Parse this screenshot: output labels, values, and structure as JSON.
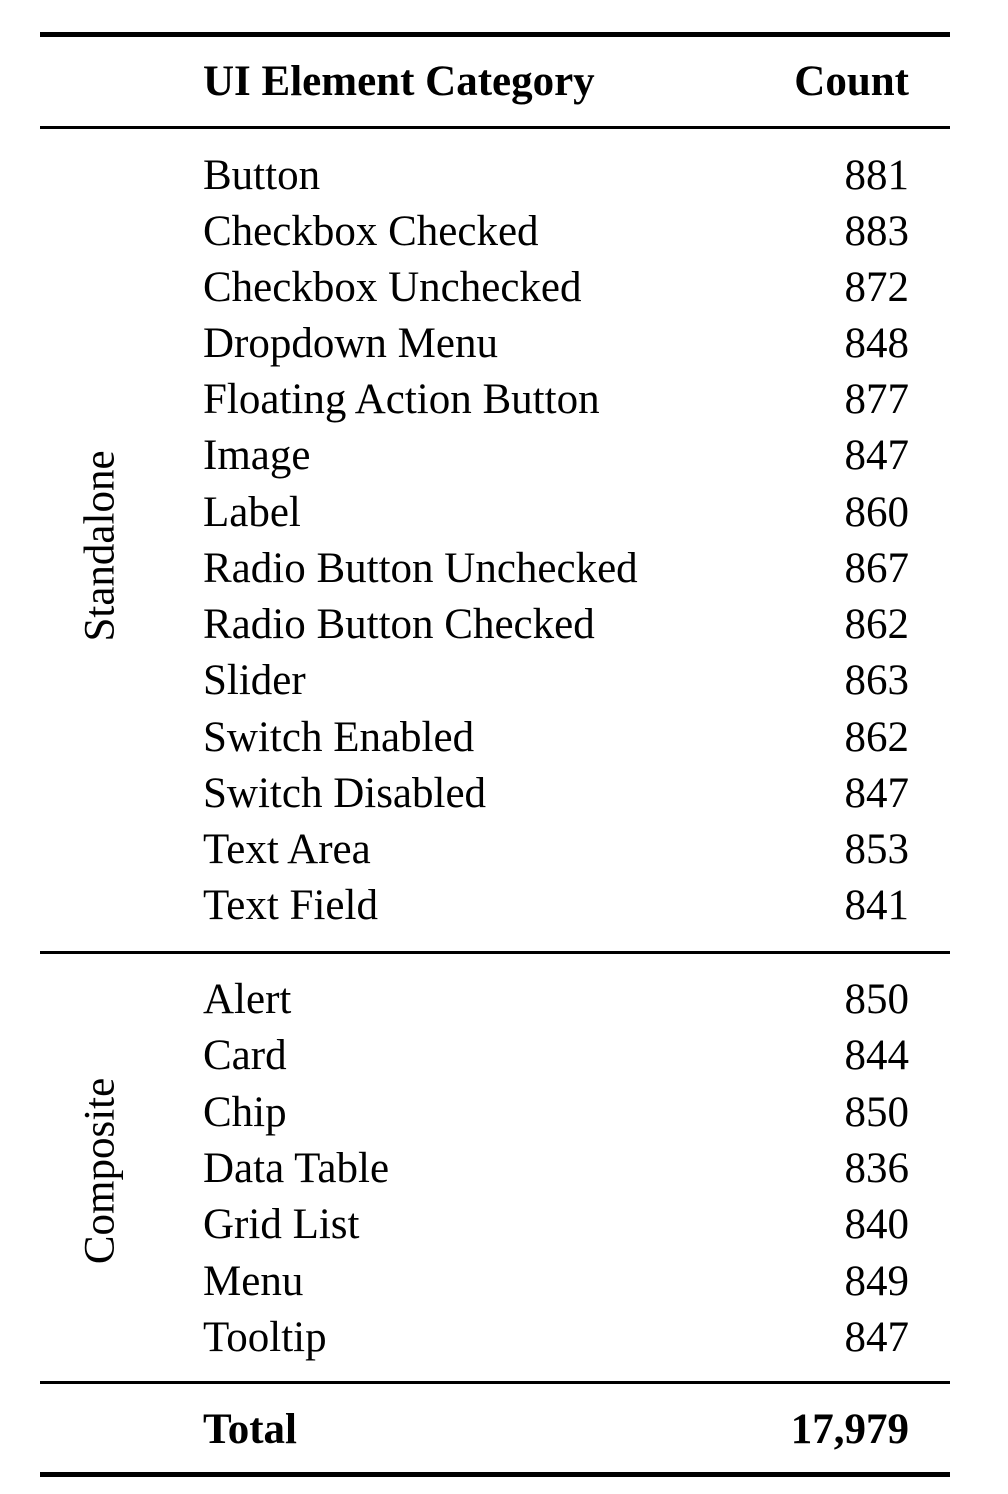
{
  "header": {
    "category": "UI Element Category",
    "count": "Count"
  },
  "groups": [
    {
      "label": "Standalone",
      "rows": [
        {
          "name": "Button",
          "count": "881"
        },
        {
          "name": "Checkbox Checked",
          "count": "883"
        },
        {
          "name": "Checkbox Unchecked",
          "count": "872"
        },
        {
          "name": "Dropdown Menu",
          "count": "848"
        },
        {
          "name": "Floating Action Button",
          "count": "877"
        },
        {
          "name": "Image",
          "count": "847"
        },
        {
          "name": "Label",
          "count": "860"
        },
        {
          "name": "Radio Button Unchecked",
          "count": "867"
        },
        {
          "name": "Radio Button Checked",
          "count": "862"
        },
        {
          "name": "Slider",
          "count": "863"
        },
        {
          "name": "Switch Enabled",
          "count": "862"
        },
        {
          "name": "Switch Disabled",
          "count": "847"
        },
        {
          "name": "Text Area",
          "count": "853"
        },
        {
          "name": "Text Field",
          "count": "841"
        }
      ]
    },
    {
      "label": "Composite",
      "rows": [
        {
          "name": "Alert",
          "count": "850"
        },
        {
          "name": "Card",
          "count": "844"
        },
        {
          "name": "Chip",
          "count": "850"
        },
        {
          "name": "Data Table",
          "count": "836"
        },
        {
          "name": "Grid List",
          "count": "840"
        },
        {
          "name": "Menu",
          "count": "849"
        },
        {
          "name": "Tooltip",
          "count": "847"
        }
      ]
    }
  ],
  "total": {
    "label": "Total",
    "count": "17,979"
  }
}
